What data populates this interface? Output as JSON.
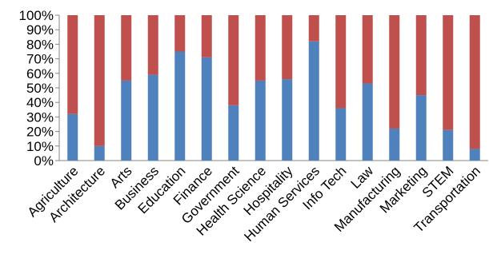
{
  "chart_data": {
    "type": "bar",
    "stacked": true,
    "percent_stacked": true,
    "categories": [
      "Agriculture",
      "Architecture",
      "Arts",
      "Business",
      "Education",
      "Finance",
      "Government",
      "Health Science",
      "Hospitality",
      "Human Services",
      "Info Tech",
      "Law",
      "Manufacturing",
      "Marketing",
      "STEM",
      "Transportation"
    ],
    "series": [
      {
        "color": "#4F81BD",
        "values": [
          32,
          10,
          55,
          59,
          75,
          71,
          38,
          55,
          56,
          82,
          36,
          53,
          22,
          45,
          21,
          8
        ]
      },
      {
        "color": "#C0504D",
        "values": [
          68,
          90,
          45,
          41,
          25,
          29,
          62,
          45,
          44,
          18,
          64,
          47,
          78,
          55,
          79,
          92
        ]
      }
    ],
    "y_ticks": [
      "0%",
      "10%",
      "20%",
      "30%",
      "40%",
      "50%",
      "60%",
      "70%",
      "80%",
      "90%",
      "100%"
    ],
    "ylim": [
      0,
      100
    ],
    "grid": false,
    "legend": "none",
    "title": "",
    "xlabel": "",
    "ylabel": ""
  }
}
